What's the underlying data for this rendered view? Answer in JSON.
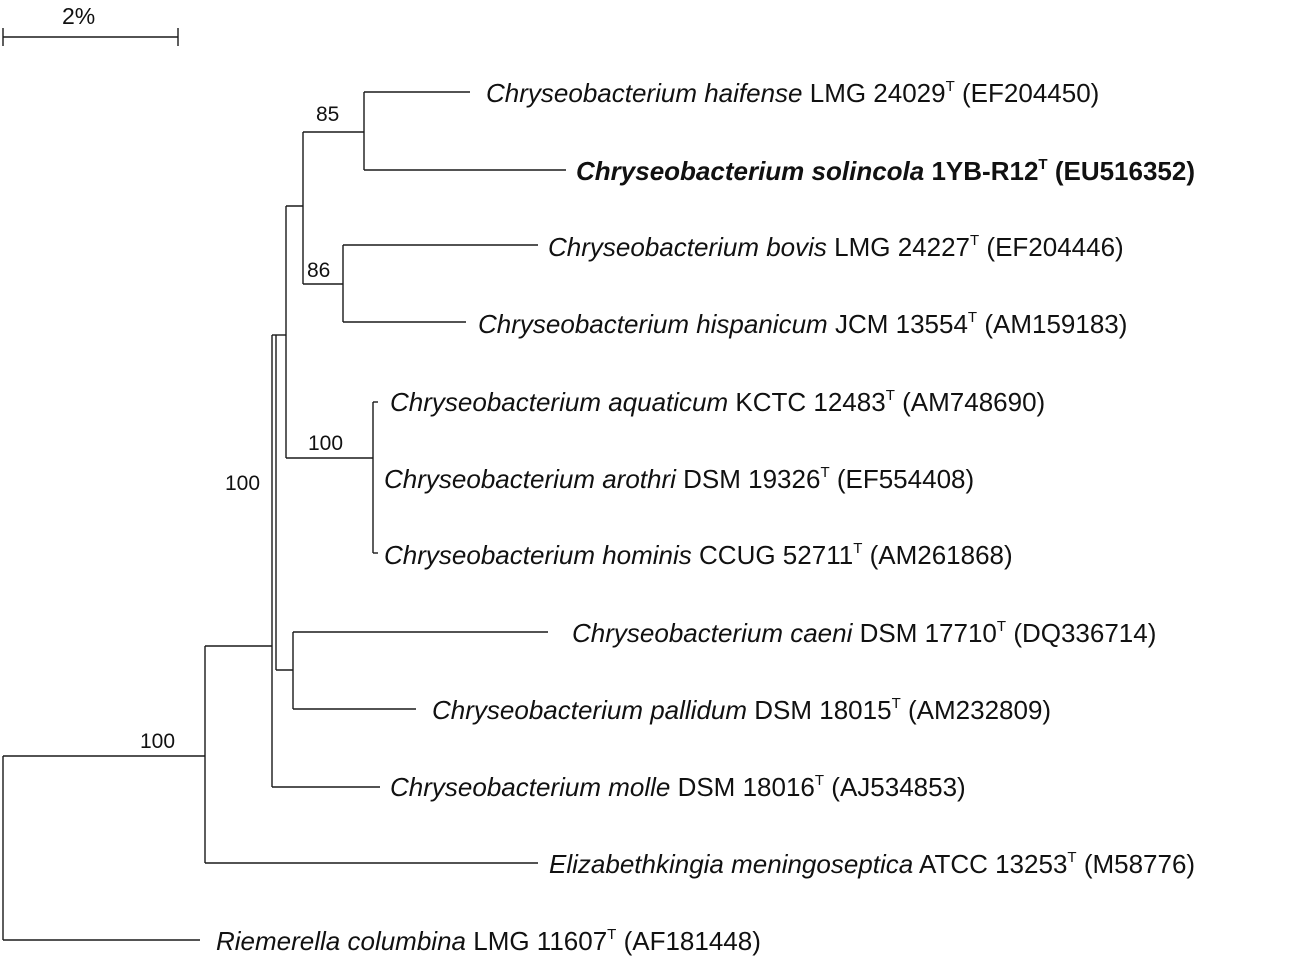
{
  "scale_bar": {
    "label": "2%"
  },
  "taxa": [
    {
      "species": "Chryseobacterium haifense",
      "strain": "LMG 24029",
      "type_mark": "T",
      "accession": "(EF204450)",
      "bold": false
    },
    {
      "species": "Chryseobacterium solincola",
      "strain": "1YB-R12",
      "type_mark": "T",
      "accession": "(EU516352)",
      "bold": true
    },
    {
      "species": "Chryseobacterium bovis",
      "strain": "LMG 24227",
      "type_mark": "T",
      "accession": "(EF204446)",
      "bold": false
    },
    {
      "species": "Chryseobacterium hispanicum",
      "strain": "JCM 13554",
      "type_mark": "T",
      "accession": "(AM159183)",
      "bold": false
    },
    {
      "species": "Chryseobacterium aquaticum",
      "strain": "KCTC 12483",
      "type_mark": "T",
      "accession": "(AM748690)",
      "bold": false
    },
    {
      "species": "Chryseobacterium arothri",
      "strain": "DSM 19326",
      "type_mark": "T",
      "accession": "(EF554408)",
      "bold": false
    },
    {
      "species": "Chryseobacterium hominis",
      "strain": "CCUG 52711",
      "type_mark": "T",
      "accession": "(AM261868)",
      "bold": false
    },
    {
      "species": "Chryseobacterium caeni",
      "strain": "DSM 17710",
      "type_mark": "T",
      "accession": "(DQ336714)",
      "bold": false
    },
    {
      "species": "Chryseobacterium pallidum",
      "strain": "DSM 18015",
      "type_mark": "T",
      "accession": "(AM232809)",
      "bold": false
    },
    {
      "species": "Chryseobacterium molle",
      "strain": "DSM 18016",
      "type_mark": "T",
      "accession": "(AJ534853)",
      "bold": false
    },
    {
      "species": "Elizabethkingia meningoseptica",
      "strain": "ATCC 13253",
      "type_mark": "T",
      "accession": "(M58776)",
      "bold": false
    },
    {
      "species": "Riemerella columbina",
      "strain": "LMG 11607",
      "type_mark": "T",
      "accession": "(AF181448)",
      "bold": false
    }
  ],
  "bootstrap_values": [
    "85",
    "86",
    "100",
    "100",
    "100"
  ]
}
